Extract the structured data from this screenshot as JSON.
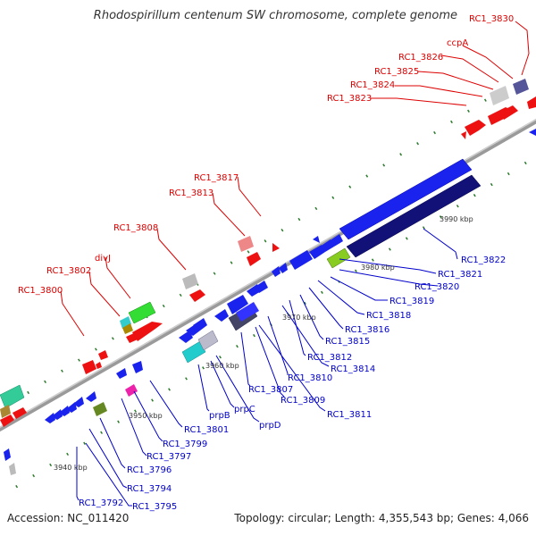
{
  "header": {
    "title": "Rhodospirillum centenum SW chromosome, complete genome"
  },
  "footer": {
    "accession": "Accession: NC_011420",
    "summary": "Topology: circular; Length: 4,355,543 bp; Genes: 4,066"
  },
  "colors": {
    "backbone": "#9a9a9a",
    "tick": "#2a7a2a",
    "red_label": "#dd0000",
    "blue_label": "#0000cc",
    "red_gene": "#ee1111",
    "blue_gene": "#1a22ee",
    "navy_gene": "#111177",
    "gray_gene": "#bbbbbb"
  },
  "scale_labels": [
    "3940 kbp",
    "3950 kbp",
    "3960 kbp",
    "3970 kbp",
    "3980 kbp",
    "3990 kbp"
  ],
  "labels_top": [
    "RC1_3830",
    "ccpA",
    "RC1_3826",
    "RC1_3825",
    "RC1_3824",
    "RC1_3823",
    "RC1_3817",
    "RC1_3813",
    "RC1_3808",
    "divJ",
    "RC1_3802",
    "RC1_3800"
  ],
  "labels_bottom": [
    "RC1_3822",
    "RC1_3821",
    "RC1_3820",
    "RC1_3819",
    "RC1_3818",
    "RC1_3816",
    "RC1_3815",
    "RC1_3812",
    "RC1_3814",
    "RC1_3810",
    "RC1_3807",
    "RC1_3809",
    "RC1_3811",
    "prpB",
    "prpC",
    "prpD",
    "RC1_3801",
    "RC1_3799",
    "RC1_3797",
    "RC1_3796",
    "RC1_3794",
    "RC1_3792",
    "RC1_3795"
  ]
}
